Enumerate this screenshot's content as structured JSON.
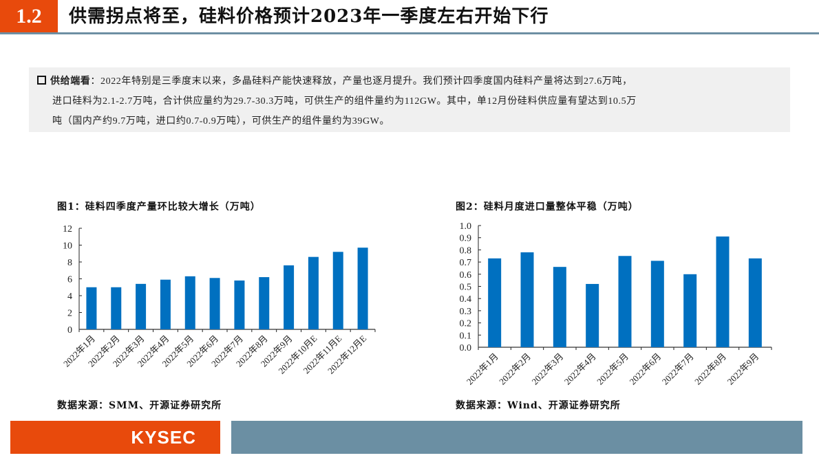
{
  "header": {
    "section_number": "1.2",
    "title": "供需拐点将至，硅料价格预计2023年一季度左右开始下行"
  },
  "summary": {
    "lead": "供给端看",
    "lines": [
      "：2022年特别是三季度末以来，多晶硅料产能快速释放，产量也逐月提升。我们预计四季度国内硅料产量将达到27.6万吨，",
      "进口硅料为2.1-2.7万吨，合计供应量约为29.7-30.3万吨，可供生产的组件量约为112GW。其中，单12月份硅料供应量有望达到10.5万",
      "吨（国内产约9.7万吨，进口约0.7-0.9万吨），可供生产的组件量约为39GW。"
    ]
  },
  "charts": [
    {
      "title": "图1：硅料四季度产量环比较大增长（万吨）",
      "source": "数据来源：SMM、开源证券研究所"
    },
    {
      "title": "图2：硅料月度进口量整体平稳（万吨）",
      "source": "数据来源：Wind、开源证券研究所"
    }
  ],
  "chart_data": [
    {
      "type": "bar",
      "title": "图1：硅料四季度产量环比较大增长（万吨）",
      "xlabel": "",
      "ylabel": "万吨",
      "categories": [
        "2022年1月",
        "2022年2月",
        "2022年3月",
        "2022年4月",
        "2022年5月",
        "2022年6月",
        "2022年7月",
        "2022年8月",
        "2022年9月",
        "2022年10月E",
        "2022年11月E",
        "2022年12月E"
      ],
      "values": [
        5.0,
        5.0,
        5.4,
        5.9,
        6.3,
        6.1,
        5.8,
        6.2,
        7.6,
        8.6,
        9.2,
        9.7
      ],
      "yticks": [
        "0",
        "2",
        "4",
        "6",
        "8",
        "10",
        "12"
      ],
      "ylim": [
        0,
        12
      ],
      "grid": false,
      "legend": null,
      "color": "#0070c0",
      "source": "数据来源：SMM、开源证券研究所"
    },
    {
      "type": "bar",
      "title": "图2：硅料月度进口量整体平稳（万吨）",
      "xlabel": "",
      "ylabel": "万吨",
      "categories": [
        "2022年1月",
        "2022年2月",
        "2022年3月",
        "2022年4月",
        "2022年5月",
        "2022年6月",
        "2022年7月",
        "2022年8月",
        "2022年9月"
      ],
      "values": [
        0.73,
        0.78,
        0.66,
        0.52,
        0.75,
        0.71,
        0.6,
        0.91,
        0.73
      ],
      "yticks": [
        "0.0",
        "0.1",
        "0.2",
        "0.3",
        "0.4",
        "0.5",
        "0.6",
        "0.7",
        "0.8",
        "0.9",
        "1.0"
      ],
      "ylim": [
        0,
        1.0
      ],
      "grid": false,
      "legend": null,
      "color": "#0070c0",
      "source": "数据来源：Wind、开源证券研究所"
    }
  ],
  "footer": {
    "logo_text": "KYSEC"
  },
  "colors": {
    "accent": "#e84a0c",
    "rule": "#6b8fa3",
    "bar": "#0070c0",
    "summary_bg": "#f0f0f0"
  }
}
